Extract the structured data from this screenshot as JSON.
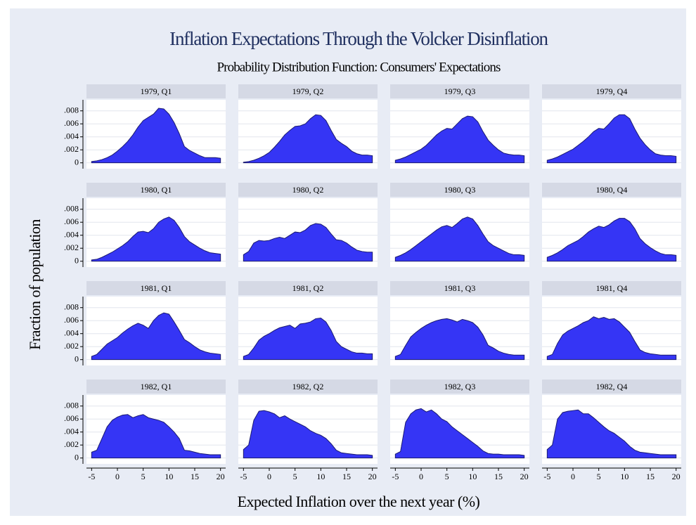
{
  "chart_data": {
    "type": "area",
    "title": "Inflation Expectations Through the Volcker Disinflation",
    "subtitle": "Probability Distribution Function: Consumers' Expectations",
    "xlabel": "Expected Inflation over the next year (%)",
    "ylabel": "Fraction of population",
    "color": "#3535f5",
    "grid": true,
    "xlim": [
      -6,
      21
    ],
    "xticks": [
      -5,
      0,
      5,
      10,
      15,
      20
    ],
    "ylim": [
      -0.0009,
      0.0097
    ],
    "yticks": [
      {
        "value": 0,
        "label": "0"
      },
      {
        "value": 0.002,
        "label": ".002"
      },
      {
        "value": 0.004,
        "label": ".004"
      },
      {
        "value": 0.006,
        "label": ".006"
      },
      {
        "value": 0.008,
        "label": ".008"
      }
    ],
    "x": [
      -5,
      -4,
      -3,
      -2,
      -1,
      0,
      1,
      2,
      3,
      4,
      5,
      6,
      7,
      8,
      9,
      10,
      11,
      12,
      13,
      14,
      15,
      16,
      17,
      18,
      19,
      20
    ],
    "panels": [
      {
        "title": "1979, Q1",
        "values": [
          0.0002,
          0.0003,
          0.0005,
          0.0008,
          0.0012,
          0.0018,
          0.0025,
          0.0033,
          0.0043,
          0.0055,
          0.0065,
          0.007,
          0.0075,
          0.0084,
          0.0083,
          0.0075,
          0.0062,
          0.0045,
          0.0025,
          0.0019,
          0.0015,
          0.0011,
          0.0008,
          0.0008,
          0.0008,
          0.0007
        ]
      },
      {
        "title": "1979, Q2",
        "values": [
          0.0001,
          0.0002,
          0.0004,
          0.0007,
          0.0011,
          0.0016,
          0.0024,
          0.0033,
          0.0043,
          0.005,
          0.0056,
          0.0057,
          0.006,
          0.0068,
          0.0074,
          0.0073,
          0.0065,
          0.005,
          0.0036,
          0.003,
          0.0025,
          0.0018,
          0.0014,
          0.0012,
          0.0012,
          0.0011
        ]
      },
      {
        "title": "1979, Q3",
        "values": [
          0.0004,
          0.0006,
          0.0009,
          0.0013,
          0.0017,
          0.0021,
          0.0027,
          0.0035,
          0.0043,
          0.0049,
          0.0053,
          0.0052,
          0.006,
          0.0068,
          0.0072,
          0.0071,
          0.0063,
          0.0048,
          0.0035,
          0.0027,
          0.002,
          0.0015,
          0.0013,
          0.0012,
          0.0012,
          0.0011
        ]
      },
      {
        "title": "1979, Q4",
        "values": [
          0.0004,
          0.0006,
          0.0009,
          0.0013,
          0.0017,
          0.0021,
          0.0027,
          0.0033,
          0.004,
          0.0048,
          0.0053,
          0.0052,
          0.006,
          0.0069,
          0.0074,
          0.0074,
          0.0068,
          0.0052,
          0.0038,
          0.0028,
          0.002,
          0.0014,
          0.0012,
          0.0011,
          0.0011,
          0.001
        ]
      },
      {
        "title": "1980, Q1",
        "values": [
          0.0002,
          0.0003,
          0.0006,
          0.001,
          0.0014,
          0.0019,
          0.0024,
          0.003,
          0.0038,
          0.0045,
          0.0046,
          0.0044,
          0.005,
          0.006,
          0.0065,
          0.0068,
          0.0063,
          0.0052,
          0.0038,
          0.003,
          0.0025,
          0.002,
          0.0016,
          0.0013,
          0.0012,
          0.0011
        ]
      },
      {
        "title": "1980, Q2",
        "values": [
          0.001,
          0.0015,
          0.0028,
          0.0032,
          0.0031,
          0.0032,
          0.0035,
          0.0037,
          0.0035,
          0.004,
          0.0045,
          0.0044,
          0.0048,
          0.0055,
          0.0058,
          0.0057,
          0.0052,
          0.0042,
          0.0033,
          0.0032,
          0.0028,
          0.0022,
          0.0017,
          0.0015,
          0.0014,
          0.0014
        ]
      },
      {
        "title": "1980, Q3",
        "values": [
          0.0006,
          0.0009,
          0.0013,
          0.0018,
          0.0024,
          0.003,
          0.0036,
          0.0042,
          0.0048,
          0.0053,
          0.0055,
          0.0052,
          0.0058,
          0.0065,
          0.0068,
          0.0065,
          0.0055,
          0.0042,
          0.003,
          0.0024,
          0.002,
          0.0016,
          0.0012,
          0.001,
          0.001,
          0.0009
        ]
      },
      {
        "title": "1980, Q4",
        "values": [
          0.0006,
          0.0009,
          0.0013,
          0.0018,
          0.0024,
          0.0028,
          0.0032,
          0.0038,
          0.0045,
          0.005,
          0.0054,
          0.0052,
          0.0056,
          0.0062,
          0.0066,
          0.0066,
          0.0061,
          0.005,
          0.0035,
          0.0027,
          0.0021,
          0.0016,
          0.0012,
          0.001,
          0.001,
          0.0009
        ]
      },
      {
        "title": "1981, Q1",
        "values": [
          0.0005,
          0.0008,
          0.0016,
          0.0024,
          0.0029,
          0.0034,
          0.0041,
          0.0047,
          0.0052,
          0.0056,
          0.0053,
          0.0048,
          0.006,
          0.0068,
          0.0072,
          0.007,
          0.0058,
          0.0045,
          0.0031,
          0.0026,
          0.002,
          0.0015,
          0.0012,
          0.001,
          0.0009,
          0.0008
        ]
      },
      {
        "title": "1981, Q2",
        "values": [
          0.0005,
          0.0008,
          0.0018,
          0.003,
          0.0036,
          0.004,
          0.0045,
          0.0049,
          0.0051,
          0.0053,
          0.0048,
          0.0055,
          0.0056,
          0.0058,
          0.0063,
          0.0064,
          0.0058,
          0.0045,
          0.0028,
          0.002,
          0.0016,
          0.0012,
          0.001,
          0.001,
          0.0009,
          0.0009
        ]
      },
      {
        "title": "1981, Q3",
        "values": [
          0.0005,
          0.0008,
          0.0022,
          0.0035,
          0.0042,
          0.0048,
          0.0053,
          0.0057,
          0.006,
          0.0062,
          0.0063,
          0.0061,
          0.0058,
          0.0062,
          0.006,
          0.0057,
          0.005,
          0.0038,
          0.0022,
          0.0018,
          0.0013,
          0.001,
          0.0008,
          0.0007,
          0.0007,
          0.0007
        ]
      },
      {
        "title": "1981, Q4",
        "values": [
          0.0005,
          0.0008,
          0.0025,
          0.0038,
          0.0044,
          0.0048,
          0.0052,
          0.0057,
          0.006,
          0.0066,
          0.0063,
          0.0065,
          0.0062,
          0.0063,
          0.0058,
          0.005,
          0.0042,
          0.0028,
          0.0015,
          0.0011,
          0.0009,
          0.0008,
          0.0007,
          0.0007,
          0.0007,
          0.0007
        ]
      },
      {
        "title": "1982, Q1",
        "values": [
          0.0009,
          0.0012,
          0.003,
          0.0048,
          0.0058,
          0.0063,
          0.0066,
          0.0067,
          0.0062,
          0.0065,
          0.0067,
          0.0062,
          0.006,
          0.0058,
          0.0055,
          0.0048,
          0.004,
          0.003,
          0.0012,
          0.0011,
          0.0009,
          0.0007,
          0.0006,
          0.0005,
          0.0005,
          0.0005
        ]
      },
      {
        "title": "1982, Q2",
        "values": [
          0.0013,
          0.002,
          0.0058,
          0.0072,
          0.0073,
          0.0071,
          0.0068,
          0.0062,
          0.0065,
          0.006,
          0.0056,
          0.0052,
          0.0048,
          0.0042,
          0.0038,
          0.0035,
          0.003,
          0.0022,
          0.0012,
          0.0008,
          0.0007,
          0.0006,
          0.0005,
          0.0005,
          0.0005,
          0.0004
        ]
      },
      {
        "title": "1982, Q3",
        "values": [
          0.0006,
          0.001,
          0.0055,
          0.0068,
          0.0074,
          0.0076,
          0.0071,
          0.0074,
          0.0068,
          0.006,
          0.0056,
          0.0048,
          0.0042,
          0.0036,
          0.003,
          0.0024,
          0.0018,
          0.0011,
          0.0007,
          0.0006,
          0.0006,
          0.0005,
          0.0005,
          0.0005,
          0.0005,
          0.0004
        ]
      },
      {
        "title": "1982, Q4",
        "values": [
          0.0013,
          0.002,
          0.006,
          0.007,
          0.0072,
          0.0073,
          0.0074,
          0.0068,
          0.0068,
          0.0062,
          0.0055,
          0.0048,
          0.0042,
          0.0038,
          0.0032,
          0.0026,
          0.0018,
          0.0012,
          0.0009,
          0.0008,
          0.0007,
          0.0006,
          0.0005,
          0.0005,
          0.0005,
          0.0005
        ]
      }
    ]
  }
}
